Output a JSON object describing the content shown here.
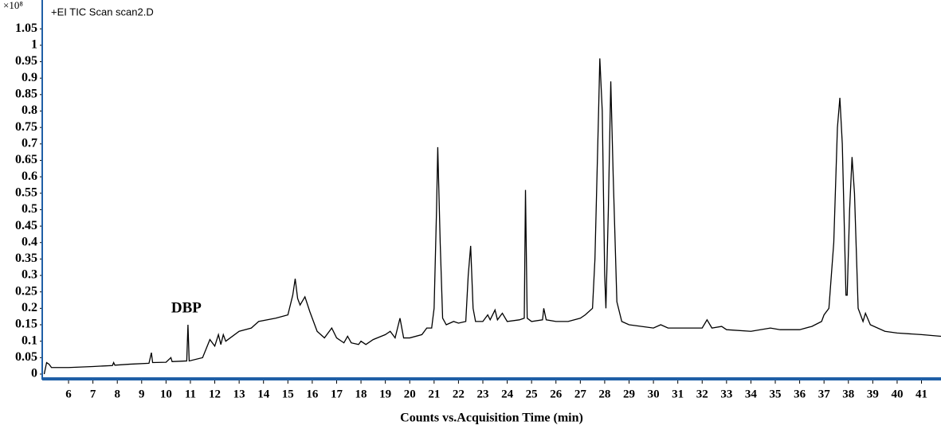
{
  "chart_data": {
    "type": "line",
    "title": "+EI TIC Scan scan2.D",
    "y_multiplier_label": "×10⁸",
    "x_label": "Counts vs.Acquisition Time (min)",
    "annotation": {
      "text": "DBP",
      "x": 10.9,
      "y": 0.15
    },
    "color": "#000000",
    "axis_color": "#1f5fa6",
    "grid": false,
    "xlim": [
      4.92,
      41.8
    ],
    "ylim": [
      -0.017,
      1.128
    ],
    "xticks": [
      6,
      7,
      8,
      9,
      10,
      11,
      12,
      13,
      14,
      15,
      16,
      17,
      18,
      19,
      20,
      21,
      22,
      23,
      24,
      25,
      26,
      27,
      28,
      29,
      30,
      31,
      32,
      33,
      34,
      35,
      36,
      37,
      38,
      39,
      40,
      41
    ],
    "yticks": [
      0,
      0.05,
      0.1,
      0.15,
      0.2,
      0.25,
      0.3,
      0.35,
      0.4,
      0.45,
      0.5,
      0.55,
      0.6,
      0.65,
      0.7,
      0.75,
      0.8,
      0.85,
      0.9,
      0.95,
      1,
      1.05
    ],
    "x": [
      5.0,
      5.1,
      5.2,
      5.3,
      6,
      7,
      7.8,
      7.85,
      7.9,
      8.5,
      9.3,
      9.4,
      9.45,
      10,
      10.2,
      10.25,
      10.85,
      10.9,
      10.95,
      11.5,
      11.8,
      12.0,
      12.15,
      12.25,
      12.35,
      12.45,
      13,
      13.5,
      13.8,
      14.5,
      15.0,
      15.2,
      15.3,
      15.4,
      15.5,
      15.7,
      15.9,
      16.2,
      16.5,
      16.8,
      17.0,
      17.3,
      17.45,
      17.6,
      17.9,
      18.0,
      18.2,
      18.5,
      19.0,
      19.2,
      19.4,
      19.6,
      19.75,
      20.0,
      20.5,
      20.7,
      20.9,
      21.0,
      21.1,
      21.15,
      21.25,
      21.35,
      21.5,
      21.8,
      22,
      22.3,
      22.4,
      22.5,
      22.6,
      22.7,
      23.0,
      23.2,
      23.3,
      23.5,
      23.6,
      23.8,
      24.0,
      24.5,
      24.7,
      24.75,
      24.82,
      25.0,
      25.45,
      25.5,
      25.6,
      26,
      26.5,
      27,
      27.2,
      27.5,
      27.6,
      27.75,
      27.8,
      27.9,
      28.0,
      28.05,
      28.15,
      28.25,
      28.35,
      28.5,
      28.7,
      29,
      30,
      30.3,
      30.6,
      31,
      32,
      32.2,
      32.4,
      32.8,
      33,
      34,
      34.8,
      35.2,
      36,
      36.5,
      36.9,
      37.0,
      37.2,
      37.4,
      37.55,
      37.65,
      37.75,
      37.9,
      37.95,
      38.05,
      38.15,
      38.25,
      38.4,
      38.6,
      38.7,
      38.9,
      39.5,
      40,
      41,
      41.8
    ],
    "values": [
      0.0,
      0.035,
      0.03,
      0.02,
      0.02,
      0.023,
      0.026,
      0.035,
      0.027,
      0.03,
      0.033,
      0.065,
      0.035,
      0.036,
      0.05,
      0.038,
      0.04,
      0.15,
      0.04,
      0.05,
      0.105,
      0.085,
      0.12,
      0.09,
      0.12,
      0.1,
      0.13,
      0.14,
      0.16,
      0.17,
      0.18,
      0.24,
      0.29,
      0.23,
      0.21,
      0.235,
      0.19,
      0.13,
      0.11,
      0.14,
      0.11,
      0.095,
      0.115,
      0.095,
      0.09,
      0.1,
      0.09,
      0.105,
      0.12,
      0.13,
      0.11,
      0.17,
      0.11,
      0.11,
      0.12,
      0.14,
      0.14,
      0.2,
      0.5,
      0.69,
      0.4,
      0.17,
      0.15,
      0.16,
      0.155,
      0.16,
      0.3,
      0.39,
      0.2,
      0.16,
      0.16,
      0.18,
      0.165,
      0.195,
      0.165,
      0.185,
      0.16,
      0.165,
      0.17,
      0.56,
      0.17,
      0.16,
      0.165,
      0.2,
      0.165,
      0.16,
      0.16,
      0.17,
      0.18,
      0.2,
      0.35,
      0.8,
      0.96,
      0.8,
      0.3,
      0.2,
      0.5,
      0.89,
      0.6,
      0.22,
      0.16,
      0.15,
      0.14,
      0.15,
      0.14,
      0.14,
      0.14,
      0.165,
      0.14,
      0.145,
      0.135,
      0.13,
      0.14,
      0.135,
      0.135,
      0.145,
      0.16,
      0.18,
      0.2,
      0.4,
      0.75,
      0.84,
      0.7,
      0.24,
      0.24,
      0.5,
      0.66,
      0.55,
      0.2,
      0.16,
      0.185,
      0.15,
      0.13,
      0.125,
      0.12,
      0.115
    ]
  }
}
